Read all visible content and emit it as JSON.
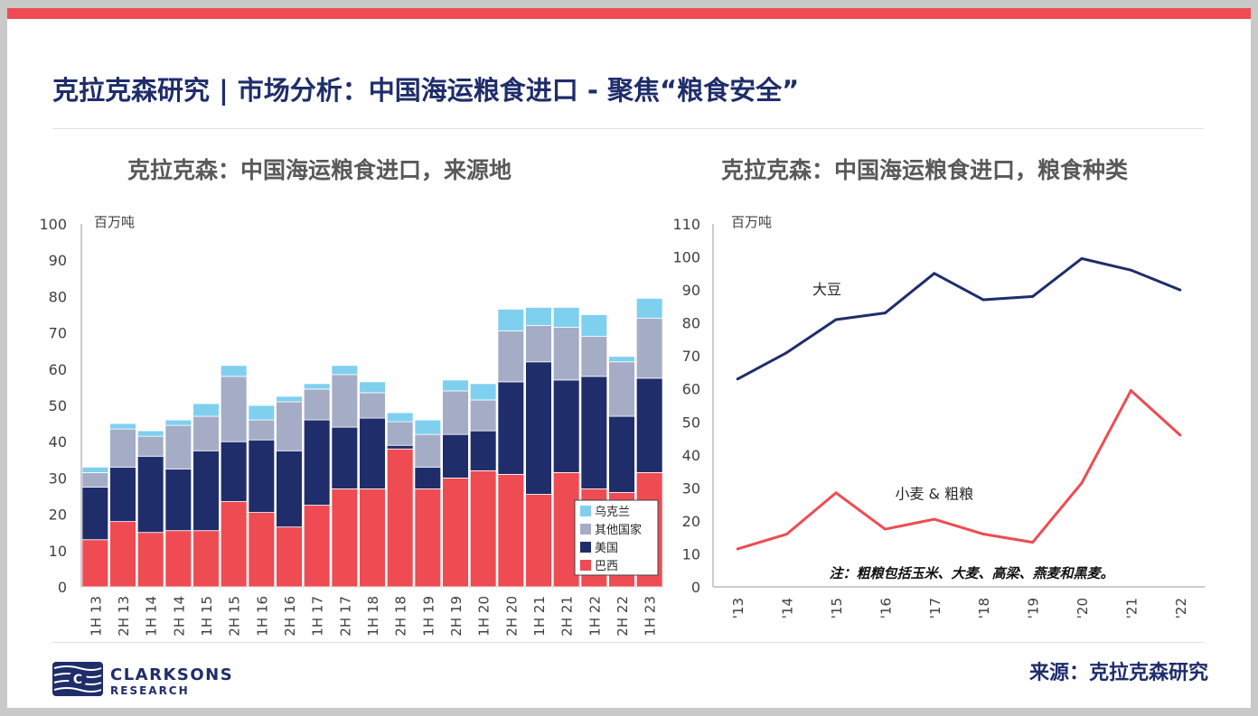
{
  "slide": {
    "title": "克拉克森研究 | 市场分析：中国海运粮食进口 - 聚焦“粮食安全”",
    "source": "来源：克拉克森研究",
    "logo": {
      "name": "CLARKSONS",
      "sub": "RESEARCH",
      "mark": "C"
    },
    "colors": {
      "accent_bar": "#ef4b52",
      "title": "#1f2d6b"
    }
  },
  "chart_data": [
    {
      "type": "bar",
      "stacked": true,
      "title": "克拉克森：中国海运粮食进口，来源地",
      "unit": "百万吨",
      "ylim": [
        0,
        100
      ],
      "yticks": [
        0,
        10,
        20,
        30,
        40,
        50,
        60,
        70,
        80,
        90,
        100
      ],
      "grid": false,
      "legend_position": "bottom-right",
      "categories": [
        "1H 13",
        "2H 13",
        "1H 14",
        "2H 14",
        "1H 15",
        "2H 15",
        "1H 16",
        "2H 16",
        "1H 17",
        "2H 17",
        "1H 18",
        "2H 18",
        "1H 19",
        "2H 19",
        "1H 20",
        "2H 20",
        "1H 21",
        "2H 21",
        "1H 22",
        "2H 22",
        "1H 23"
      ],
      "series": [
        {
          "name": "巴西",
          "color": "#ef4b52",
          "values": [
            13,
            18,
            15,
            15.5,
            15.5,
            23.5,
            20.5,
            16.5,
            22.5,
            27,
            27,
            38,
            27,
            30,
            32,
            31,
            25.5,
            31.5,
            27,
            26,
            31.5
          ]
        },
        {
          "name": "美国",
          "color": "#1f2d6b",
          "values": [
            14.5,
            15,
            21,
            17,
            22,
            16.5,
            20,
            21,
            23.5,
            17,
            19.5,
            1,
            6,
            12,
            11,
            25.5,
            36.5,
            25.5,
            31,
            21,
            26
          ]
        },
        {
          "name": "其他国家",
          "color": "#a5adc6",
          "values": [
            4,
            10.5,
            5.5,
            12,
            9.5,
            18,
            5.5,
            13.5,
            8.5,
            14.5,
            7,
            6.5,
            9,
            12,
            8.5,
            14,
            10,
            14.5,
            11,
            15,
            16.5
          ]
        },
        {
          "name": "乌克兰",
          "color": "#7fd0ef",
          "values": [
            1.5,
            1.5,
            1.5,
            1.5,
            3.5,
            3,
            4,
            1.5,
            1.5,
            2.5,
            3,
            2.5,
            4,
            3,
            4.5,
            6,
            5,
            5.5,
            6,
            1.5,
            5.5
          ]
        }
      ]
    },
    {
      "type": "line",
      "title": "克拉克森：中国海运粮食进口，粮食种类",
      "unit": "百万吨",
      "ylim": [
        0,
        110
      ],
      "yticks": [
        0,
        10,
        20,
        30,
        40,
        50,
        60,
        70,
        80,
        90,
        100,
        110
      ],
      "grid": false,
      "x": [
        "'13",
        "'14",
        "'15",
        "'16",
        "'17",
        "'18",
        "'19",
        "'20",
        "'21",
        "'22"
      ],
      "series": [
        {
          "name": "大豆",
          "color": "#1f2d6b",
          "values": [
            63,
            71,
            81,
            83,
            95,
            87,
            88,
            99.5,
            96,
            90
          ]
        },
        {
          "name": "小麦 & 粗粮",
          "color": "#ef4b52",
          "values": [
            11.5,
            16,
            28.5,
            17.5,
            20.5,
            16,
            13.5,
            31.5,
            59.5,
            46
          ]
        }
      ],
      "note": "注：粗粮包括玉米、大麦、高梁、燕麦和黑麦。"
    }
  ]
}
